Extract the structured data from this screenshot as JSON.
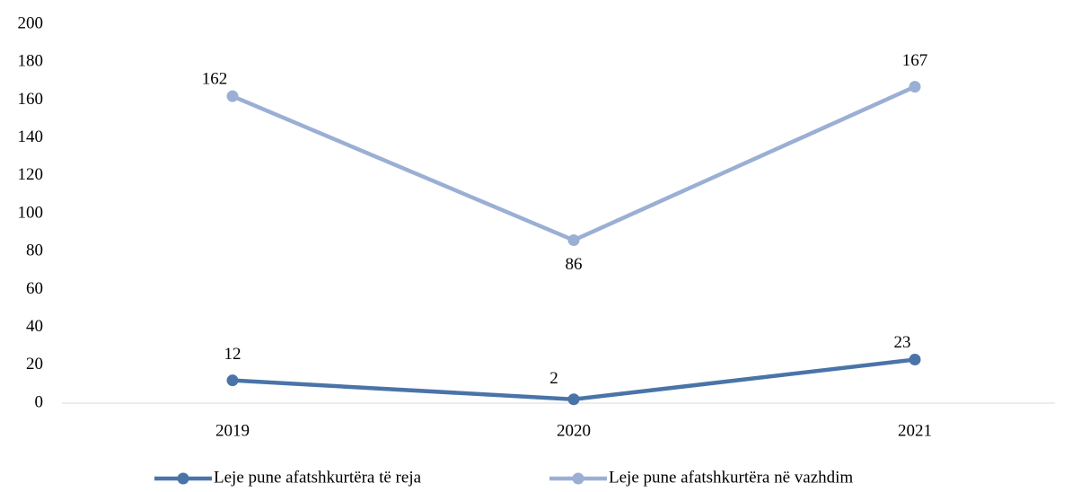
{
  "chart_data": {
    "type": "line",
    "categories": [
      "2019",
      "2020",
      "2021"
    ],
    "series": [
      {
        "name": "Leje pune afatshkurtëra të reja",
        "color": "#4a74a8",
        "values": [
          12,
          2,
          23
        ]
      },
      {
        "name": "Leje pune afatshkurtëra në vazhdim",
        "color": "#9aafd4",
        "values": [
          162,
          86,
          167
        ]
      }
    ],
    "ylim": [
      0,
      200
    ],
    "yticks": [
      0,
      20,
      40,
      60,
      80,
      100,
      120,
      140,
      160,
      180,
      200
    ],
    "grid": false,
    "legend": "bottom"
  }
}
